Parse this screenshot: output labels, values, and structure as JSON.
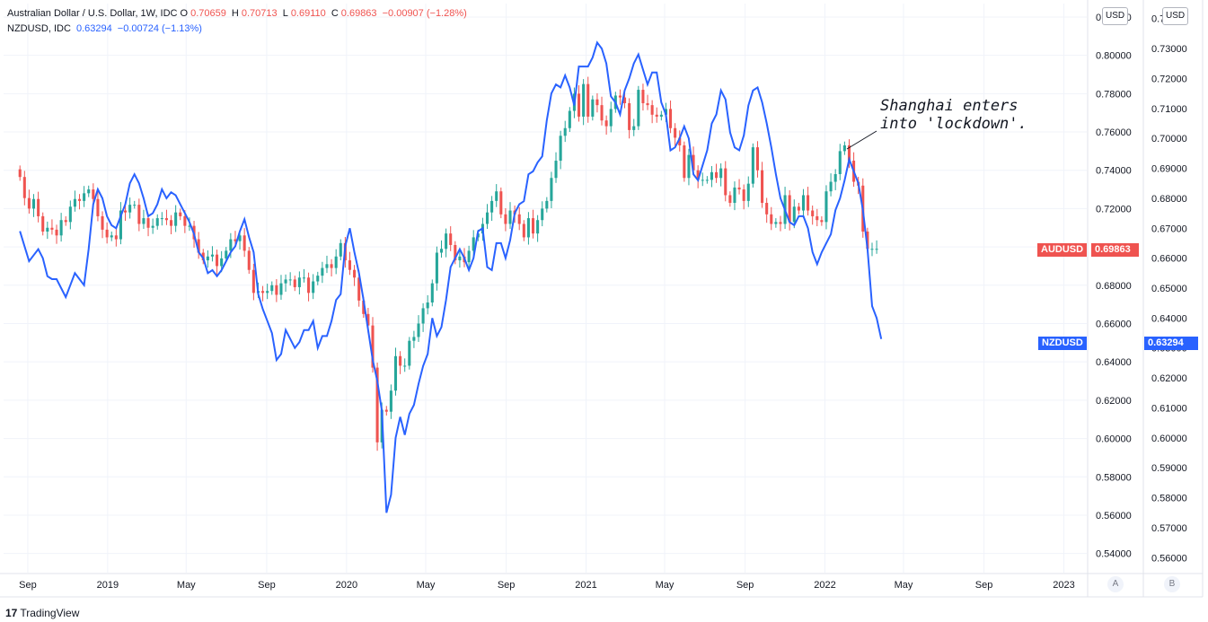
{
  "legend": {
    "aud": {
      "symbol": "Australian Dollar / U.S. Dollar, 1W, IDC",
      "open_label": "O",
      "open": "0.70659",
      "high_label": "H",
      "high": "0.70713",
      "low_label": "L",
      "low": "0.69110",
      "close_label": "C",
      "close": "0.69863",
      "change": "−0.00907 (−1.28%)"
    },
    "nzd": {
      "symbol": "NZDUSD, IDC",
      "last": "0.63294",
      "change": "−0.00724 (−1.13%)"
    }
  },
  "axes": {
    "unit_left": "USD",
    "unit_right": "USD",
    "scale_a": "A",
    "scale_b": "B"
  },
  "price_tags": {
    "aud_label": "AUDUSD",
    "aud_value": "0.69863",
    "nzd_label": "NZDUSD",
    "nzd_value": "0.63294"
  },
  "annotation": {
    "text": "Shanghai enters\ninto 'lockdown'."
  },
  "branding": {
    "logo_mark": "17",
    "name": "TradingView"
  },
  "colors": {
    "up": "#26a69a",
    "down": "#ef5350",
    "nzd_line": "#2962ff",
    "grid": "#f0f3fa"
  },
  "chart_data": {
    "type": "line",
    "x_ticks": [
      "Sep",
      "2019",
      "May",
      "Sep",
      "2020",
      "May",
      "Sep",
      "2021",
      "May",
      "Sep",
      "2022",
      "May",
      "Sep",
      "2023"
    ],
    "y_left_ticks": [
      "0.82000",
      "0.80000",
      "0.78000",
      "0.76000",
      "0.74000",
      "0.72000",
      "0.70000",
      "0.68000",
      "0.66000",
      "0.64000",
      "0.62000",
      "0.60000",
      "0.58000",
      "0.56000",
      "0.54000"
    ],
    "y_left_range": [
      0.53,
      0.827
    ],
    "y_right_ticks": [
      "0.74000",
      "0.73000",
      "0.72000",
      "0.71000",
      "0.70000",
      "0.69000",
      "0.68000",
      "0.67000",
      "0.66000",
      "0.65000",
      "0.64000",
      "0.63000",
      "0.62000",
      "0.61000",
      "0.60000",
      "0.59000",
      "0.58000",
      "0.57000",
      "0.56000"
    ],
    "y_right_range": [
      0.555,
      0.745
    ],
    "series": [
      {
        "name": "AUDUSD",
        "type": "candlestick",
        "axis": "left",
        "x_start": "2018-08-20",
        "interval_days": 7,
        "close": [
          0.7365,
          0.7255,
          0.72,
          0.725,
          0.716,
          0.708,
          0.71,
          0.709,
          0.706,
          0.714,
          0.713,
          0.721,
          0.725,
          0.724,
          0.728,
          0.73,
          0.725,
          0.716,
          0.709,
          0.705,
          0.706,
          0.704,
          0.719,
          0.718,
          0.722,
          0.722,
          0.712,
          0.715,
          0.71,
          0.711,
          0.715,
          0.715,
          0.714,
          0.711,
          0.718,
          0.716,
          0.711,
          0.711,
          0.704,
          0.697,
          0.693,
          0.695,
          0.696,
          0.69,
          0.694,
          0.698,
          0.704,
          0.703,
          0.706,
          0.698,
          0.688,
          0.676,
          0.677,
          0.676,
          0.677,
          0.68,
          0.675,
          0.681,
          0.683,
          0.683,
          0.679,
          0.684,
          0.684,
          0.676,
          0.682,
          0.685,
          0.689,
          0.691,
          0.689,
          0.695,
          0.702,
          0.693,
          0.688,
          0.684,
          0.672,
          0.665,
          0.659,
          0.637,
          0.598,
          0.615,
          0.614,
          0.625,
          0.643,
          0.638,
          0.638,
          0.651,
          0.653,
          0.66,
          0.668,
          0.671,
          0.681,
          0.697,
          0.699,
          0.707,
          0.701,
          0.693,
          0.695,
          0.692,
          0.698,
          0.705,
          0.707,
          0.712,
          0.718,
          0.724,
          0.729,
          0.717,
          0.712,
          0.719,
          0.717,
          0.712,
          0.705,
          0.715,
          0.707,
          0.714,
          0.72,
          0.724,
          0.736,
          0.745,
          0.758,
          0.762,
          0.771,
          0.78,
          0.768,
          0.785,
          0.768,
          0.777,
          0.774,
          0.766,
          0.763,
          0.772,
          0.779,
          0.778,
          0.775,
          0.761,
          0.763,
          0.782,
          0.775,
          0.774,
          0.769,
          0.768,
          0.769,
          0.772,
          0.762,
          0.757,
          0.753,
          0.736,
          0.748,
          0.74,
          0.735,
          0.735,
          0.735,
          0.739,
          0.736,
          0.741,
          0.727,
          0.723,
          0.731,
          0.73,
          0.724,
          0.733,
          0.752,
          0.74,
          0.723,
          0.717,
          0.712,
          0.713,
          0.712,
          0.727,
          0.713,
          0.721,
          0.719,
          0.727,
          0.719,
          0.716,
          0.714,
          0.713,
          0.729,
          0.734,
          0.738,
          0.75,
          0.753,
          0.745,
          0.734,
          0.732,
          0.708,
          0.699,
          0.699,
          0.699
        ]
      },
      {
        "name": "NZDUSD",
        "type": "line",
        "axis": "right",
        "x_start": "2018-08-20",
        "interval_days": 7,
        "values": [
          0.669,
          0.664,
          0.659,
          0.661,
          0.663,
          0.66,
          0.654,
          0.653,
          0.653,
          0.65,
          0.647,
          0.651,
          0.655,
          0.653,
          0.651,
          0.663,
          0.678,
          0.683,
          0.68,
          0.674,
          0.671,
          0.67,
          0.674,
          0.678,
          0.685,
          0.688,
          0.685,
          0.68,
          0.674,
          0.675,
          0.678,
          0.683,
          0.68,
          0.682,
          0.681,
          0.678,
          0.675,
          0.672,
          0.668,
          0.662,
          0.66,
          0.655,
          0.656,
          0.654,
          0.656,
          0.659,
          0.662,
          0.664,
          0.669,
          0.673,
          0.667,
          0.662,
          0.648,
          0.643,
          0.639,
          0.635,
          0.626,
          0.628,
          0.636,
          0.633,
          0.63,
          0.632,
          0.636,
          0.636,
          0.639,
          0.63,
          0.634,
          0.634,
          0.639,
          0.646,
          0.648,
          0.664,
          0.67,
          0.662,
          0.655,
          0.646,
          0.636,
          0.626,
          0.619,
          0.609,
          0.575,
          0.581,
          0.6,
          0.607,
          0.601,
          0.608,
          0.611,
          0.618,
          0.624,
          0.628,
          0.64,
          0.634,
          0.637,
          0.646,
          0.657,
          0.66,
          0.663,
          0.66,
          0.656,
          0.66,
          0.669,
          0.67,
          0.657,
          0.656,
          0.665,
          0.665,
          0.66,
          0.666,
          0.675,
          0.678,
          0.679,
          0.688,
          0.689,
          0.692,
          0.694,
          0.706,
          0.715,
          0.718,
          0.717,
          0.721,
          0.717,
          0.711,
          0.724,
          0.724,
          0.724,
          0.727,
          0.732,
          0.73,
          0.725,
          0.714,
          0.712,
          0.708,
          0.716,
          0.72,
          0.725,
          0.728,
          0.723,
          0.718,
          0.722,
          0.722,
          0.712,
          0.708,
          0.696,
          0.697,
          0.7,
          0.704,
          0.7,
          0.688,
          0.686,
          0.691,
          0.696,
          0.705,
          0.708,
          0.716,
          0.713,
          0.702,
          0.697,
          0.696,
          0.701,
          0.711,
          0.716,
          0.717,
          0.712,
          0.705,
          0.697,
          0.688,
          0.68,
          0.676,
          0.672,
          0.671,
          0.674,
          0.674,
          0.67,
          0.662,
          0.658,
          0.662,
          0.665,
          0.668,
          0.676,
          0.68,
          0.686,
          0.693,
          0.689,
          0.685,
          0.676,
          0.663,
          0.644,
          0.64,
          0.633
        ]
      }
    ]
  }
}
